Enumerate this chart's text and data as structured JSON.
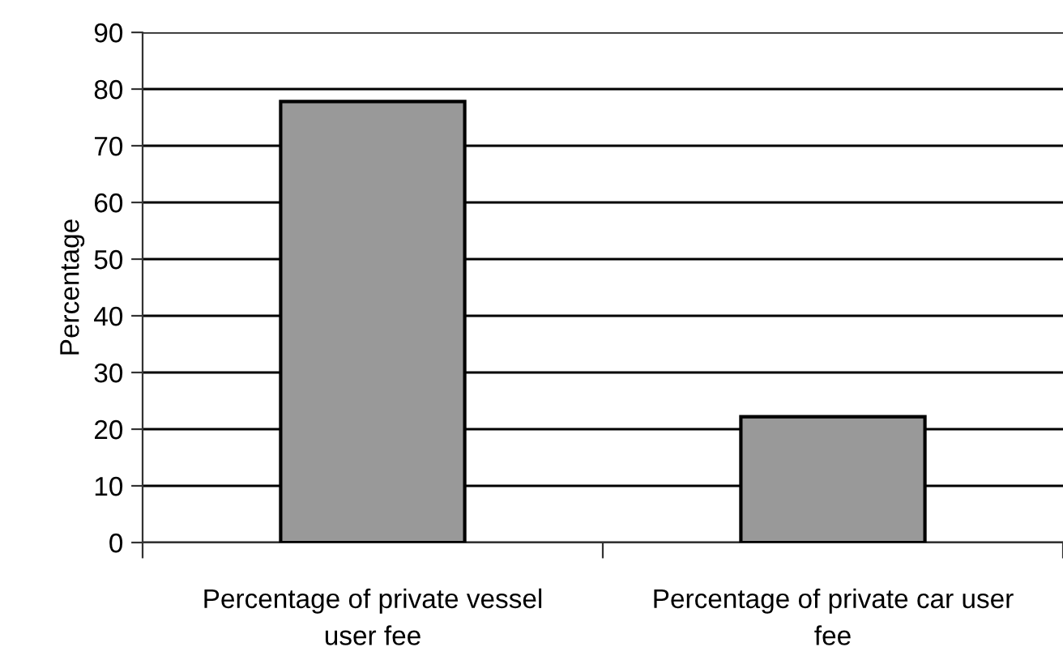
{
  "chart_data": {
    "type": "bar",
    "ylabel": "Percentage",
    "categories": [
      "Percentage of private vessel\nuser fee",
      "Percentage of private car user\nfee"
    ],
    "values": [
      77.8,
      22.2
    ],
    "color": "#999999",
    "ylim": [
      0,
      90
    ],
    "yticks": [
      0,
      10,
      20,
      30,
      40,
      50,
      60,
      70,
      80,
      90
    ],
    "grid": "y"
  }
}
